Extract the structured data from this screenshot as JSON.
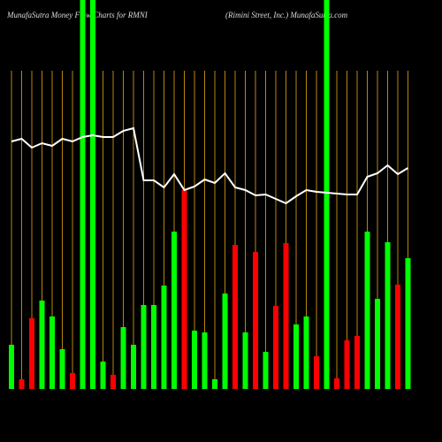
{
  "chart_data": {
    "type": "bar",
    "title": "MunafaSutra  Money Flow  Charts for RMNI",
    "subtitle": "(Rimini Street, Inc.) MunafaSutra.com",
    "ylim": [
      0,
      440
    ],
    "grid_color": "#b8860b",
    "values": [
      50,
      11,
      80,
      100,
      82,
      45,
      18,
      440,
      440,
      31,
      16,
      70,
      50,
      95,
      95,
      117,
      178,
      225,
      66,
      64,
      11,
      108,
      163,
      64,
      155,
      42,
      94,
      165,
      73,
      82,
      37,
      440,
      12,
      55,
      60,
      178,
      102,
      166,
      118,
      148
    ],
    "colors": [
      "#00ff00",
      "#ff0000",
      "#ff0000",
      "#00ff00",
      "#00ff00",
      "#00ff00",
      "#ff0000",
      "#00ff00",
      "#00ff00",
      "#00ff00",
      "#ff0000",
      "#00ff00",
      "#00ff00",
      "#00ff00",
      "#00ff00",
      "#00ff00",
      "#00ff00",
      "#ff0000",
      "#00ff00",
      "#00ff00",
      "#00ff00",
      "#00ff00",
      "#ff0000",
      "#00ff00",
      "#ff0000",
      "#00ff00",
      "#ff0000",
      "#ff0000",
      "#00ff00",
      "#00ff00",
      "#ff0000",
      "#00ff00",
      "#ff0000",
      "#ff0000",
      "#ff0000",
      "#00ff00",
      "#00ff00",
      "#00ff00",
      "#ff0000",
      "#00ff00"
    ],
    "line": {
      "color": "#ffffff",
      "values": [
        280,
        283,
        273,
        278,
        275,
        283,
        280,
        285,
        287,
        285,
        285,
        292,
        295,
        236,
        236,
        228,
        243,
        225,
        229,
        237,
        233,
        244,
        228,
        225,
        219,
        220,
        215,
        210,
        218,
        225,
        223,
        222,
        221,
        220,
        220,
        240,
        244,
        253,
        243,
        250
      ]
    }
  }
}
